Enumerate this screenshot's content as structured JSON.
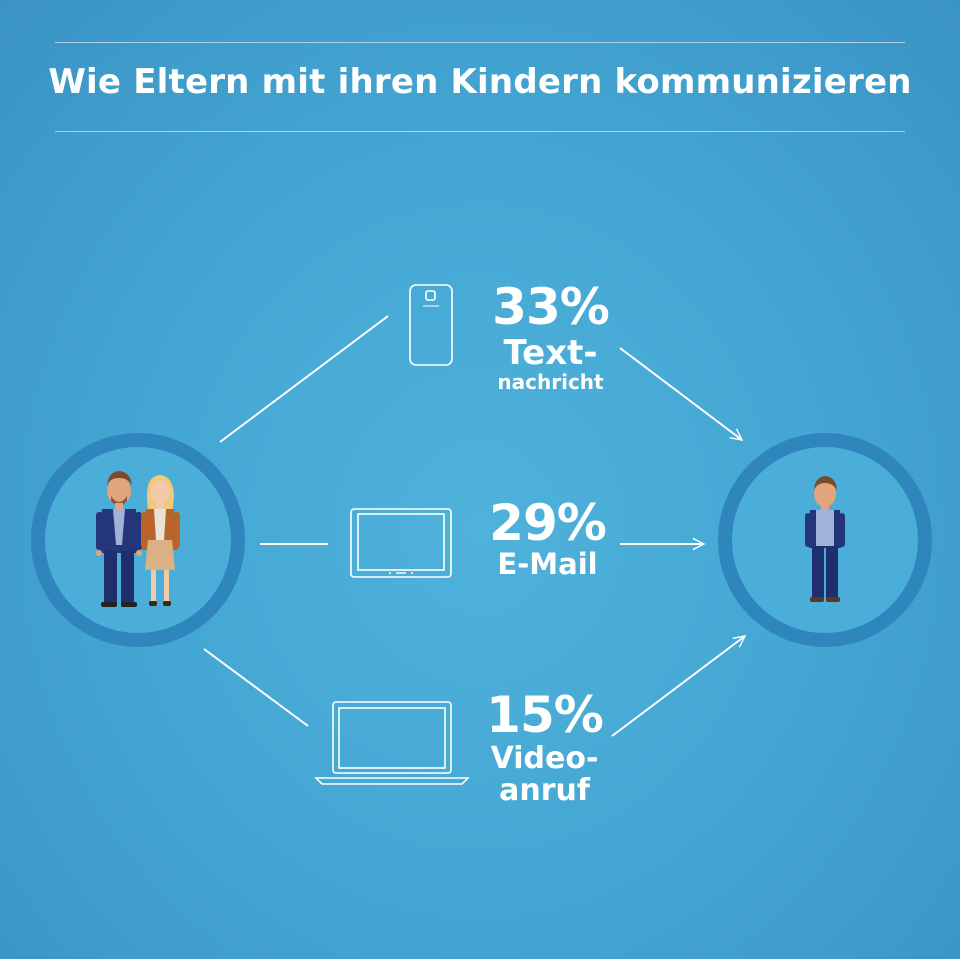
{
  "title": "Wie Eltern mit ihren Kindern kommunizieren",
  "colors": {
    "background": "#45a8d4",
    "ring": "#2f86bd",
    "line": "#ffffff"
  },
  "stats": {
    "text_message": {
      "percent": "33%",
      "line1": "Text-",
      "line2": "nachricht",
      "value": 33,
      "device_icon": "smartphone-icon"
    },
    "email": {
      "percent": "29%",
      "line1": "E-Mail",
      "value": 29,
      "device_icon": "tablet-icon"
    },
    "video_call": {
      "percent": "15%",
      "line1": "Video-",
      "line2": "anruf",
      "value": 15,
      "device_icon": "laptop-icon"
    }
  },
  "figures": {
    "parents_icon": "parents-icon",
    "child_icon": "child-icon"
  }
}
